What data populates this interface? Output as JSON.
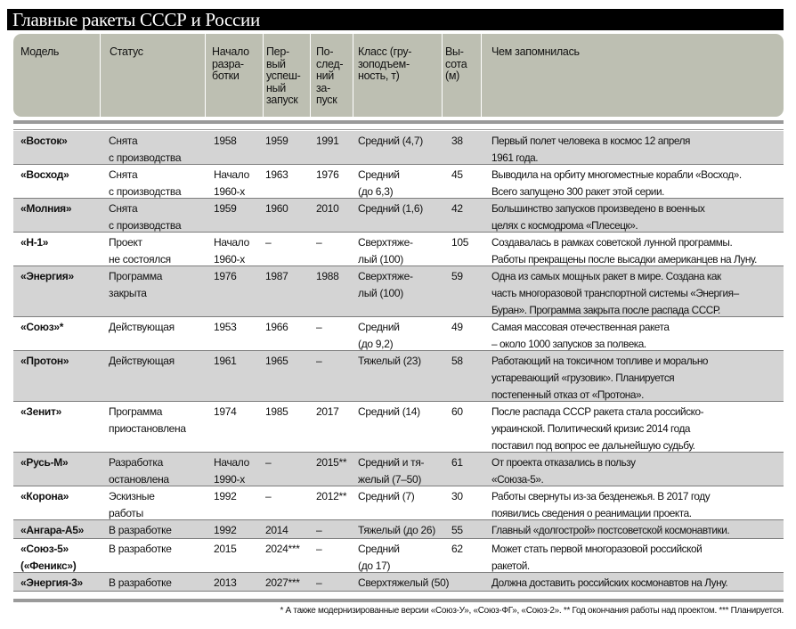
{
  "title": "Главные ракеты СССР и России",
  "headers": [
    "Модель",
    "Статус",
    "Начало\nразра-\nботки",
    "Пер-\nвый\nуспеш-\nный\nзапуск",
    "По-\nслед-\nний\nза-\nпуск",
    "Класс (гру-\nзоподъем-\nность, т)",
    "Вы-\nсота\n(м)",
    "Чем запомнилась"
  ],
  "rows": [
    {
      "model": "«Восток»",
      "status": "Снята\nс производства",
      "start": "1958",
      "first": "1959",
      "last": "1991",
      "class": "Средний (4,7)",
      "height": "38",
      "note": "Первый полет человека в космос 12 апреля\n1961 года."
    },
    {
      "model": "«Восход»",
      "status": "Снята\nс производства",
      "start": "Начало\n1960-х",
      "first": "1963",
      "last": "1976",
      "class": "Средний\n(до 6,3)",
      "height": "45",
      "note": "Выводила на орбиту многоместные корабли «Восход».\nВсего запущено 300 ракет этой серии."
    },
    {
      "model": "«Молния»",
      "status": "Снята\nс производства",
      "start": "1959",
      "first": "1960",
      "last": "2010",
      "class": "Средний (1,6)",
      "height": "42",
      "note": "Большинство запусков произведено в военных\nцелях с космодрома «Плесецк»."
    },
    {
      "model": "«Н-1»",
      "status": "Проект\nне состоялся",
      "start": "Начало\n1960-х",
      "first": "–",
      "last": "–",
      "class": "Сверхтяже-\nлый (100)",
      "height": "105",
      "note": "Создавалась в рамках советской лунной программы.\nРаботы прекращены после высадки американцев на Луну."
    },
    {
      "model": "«Энергия»",
      "status": "Программа\nзакрыта",
      "start": "1976",
      "first": "1987",
      "last": "1988",
      "class": "Сверхтяже-\nлый (100)",
      "height": "59",
      "note": "Одна из самых мощных ракет в мире. Создана как\nчасть многоразовой транспортной системы «Энергия–\nБуран». Программа закрыта после распада СССР."
    },
    {
      "model": "«Союз»*",
      "status": "Действующая",
      "start": "1953",
      "first": "1966",
      "last": "–",
      "class": "Средний\n(до 9,2)",
      "height": "49",
      "note": "Самая массовая отечественная ракета\n– около 1000 запусков за полвека."
    },
    {
      "model": "«Протон»",
      "status": "Действующая",
      "start": "1961",
      "first": "1965",
      "last": "–",
      "class": "Тяжелый (23)",
      "height": "58",
      "note": "Работающий на токсичном топливе и морально\nустаревающий «грузовик». Планируется\nпостепенный отказ от «Протона»."
    },
    {
      "model": "«Зенит»",
      "status": "Программа\nприостановлена",
      "start": "1974",
      "first": "1985",
      "last": "2017",
      "class": "Средний (14)",
      "height": "60",
      "note": "После распада СССР ракета стала российско-\nукраинской. Политический кризис 2014 года\nпоставил под вопрос ее дальнейшую судьбу."
    },
    {
      "model": "«Русь-М»",
      "status": "Разработка\nостановлена",
      "start": "Начало\n1990-х",
      "first": "–",
      "last": "2015**",
      "class": "Средний и тя-\nжелый (7–50)",
      "height": "61",
      "note": "От проекта отказались в пользу\n«Союза-5»."
    },
    {
      "model": "«Корона»",
      "status": "Эскизные\nработы",
      "start": "1992",
      "first": "–",
      "last": "2012**",
      "class": "Средний (7)",
      "height": "30",
      "note": "Работы свернуты из-за безденежья. В 2017 году\nпоявились сведения о реанимации проекта."
    },
    {
      "model": "«Ангара-А5»",
      "status": "В разработке",
      "start": "1992",
      "first": "2014",
      "last": "–",
      "class": "Тяжелый (до 26)",
      "height": "55",
      "note": "Главный «долгострой» постсоветской космонавтики."
    },
    {
      "model": "«Союз-5»\n(«Феникс»)",
      "status": "В разработке",
      "start": "2015",
      "first": "2024***",
      "last": "–",
      "class": "Средний\n(до 17)",
      "height": "62",
      "note": "Может стать первой многоразовой российской\nракетой."
    },
    {
      "model": "«Энергия-3»",
      "status": "В разработке",
      "start": "2013",
      "first": "2027***",
      "last": "–",
      "class": "Сверхтяжелый (50)",
      "height": "",
      "note": "Должна доставить российских космонавтов на Луну."
    }
  ],
  "footnote": "* А также модернизированные версии «Союз-У», «Союз-ФГ», «Союз-2».    ** Год окончания работы над проектом.    *** Планируется."
}
